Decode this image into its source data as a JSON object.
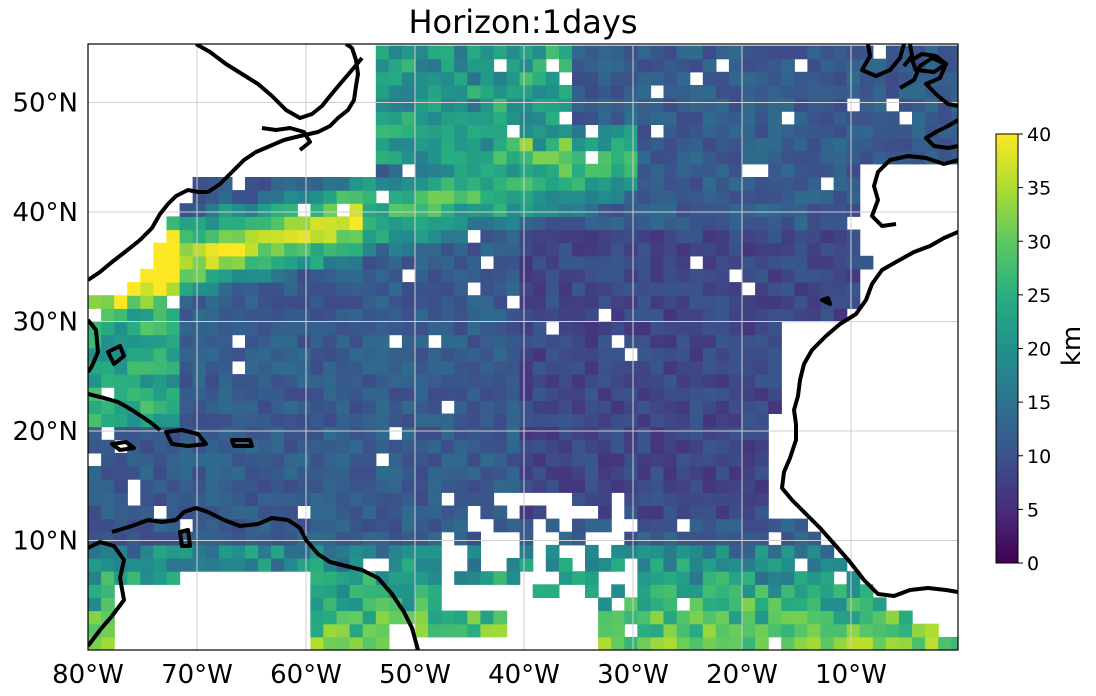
{
  "title": "Horizon:1days",
  "map": {
    "lon_range": [
      -80,
      0
    ],
    "lat_range": [
      0,
      55
    ],
    "grid": true,
    "lon_ticks": [
      "80°W",
      "70°W",
      "60°W",
      "50°W",
      "40°W",
      "30°W",
      "20°W",
      "10°W"
    ],
    "lat_ticks": [
      "50°N",
      "40°N",
      "30°N",
      "20°N",
      "10°N"
    ],
    "field": "gridded error map (km), viridis colormap"
  },
  "colorbar": {
    "label": "km",
    "min": 0,
    "max": 40,
    "ticks": [
      "40",
      "35",
      "30",
      "25",
      "20",
      "15",
      "10",
      "5",
      "0"
    ],
    "colormap": "viridis"
  },
  "colors": {
    "coast": "#000000",
    "grid": "#cfcfcf",
    "viridis_low": "#440154",
    "viridis_high": "#fde725"
  }
}
